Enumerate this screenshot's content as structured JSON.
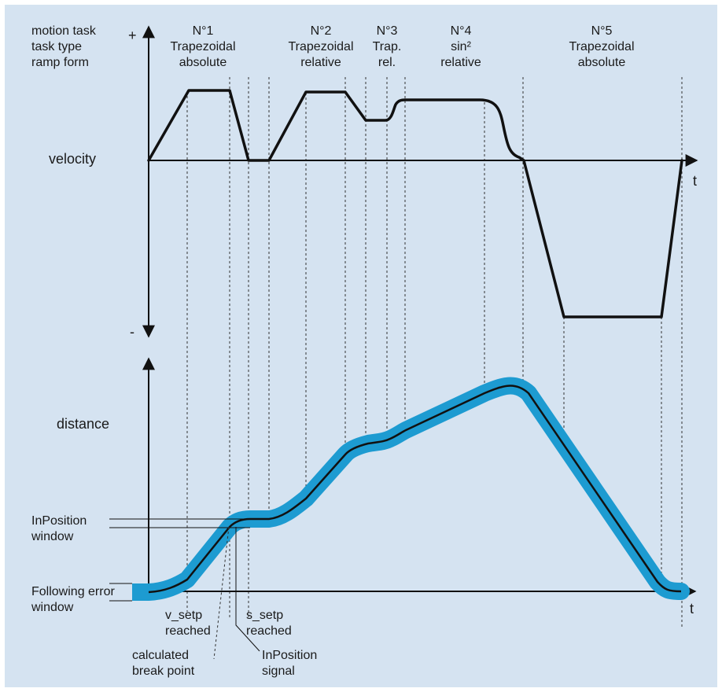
{
  "header_rows": [
    "motion task",
    "task type",
    "ramp form"
  ],
  "axis": {
    "plus": "+",
    "minus": "-",
    "t": "t",
    "velocity": "velocity",
    "distance": "distance"
  },
  "tasks": [
    {
      "number": "N°1",
      "type": "Trapezoidal",
      "mode": "absolute"
    },
    {
      "number": "N°2",
      "type": "Trapezoidal",
      "mode": "relative"
    },
    {
      "number": "N°3",
      "type": "Trap.",
      "mode": "rel."
    },
    {
      "number": "N°4",
      "type": "sin²",
      "mode": "relative"
    },
    {
      "number": "N°5",
      "type": "Trapezoidal",
      "mode": "absolute"
    }
  ],
  "labels": {
    "inposition_window": [
      "InPosition",
      "window"
    ],
    "following_error_window": [
      "Following error",
      "window"
    ],
    "v_setp": [
      "v_setp",
      "reached"
    ],
    "s_setp": [
      "s_setp",
      "reached"
    ],
    "break_point": [
      "calculated",
      "break point"
    ],
    "inposition_signal": [
      "InPosition",
      "signal"
    ]
  },
  "colors": {
    "background": "#d5e3f1",
    "band": "#1d9bd1",
    "line": "#111111"
  }
}
